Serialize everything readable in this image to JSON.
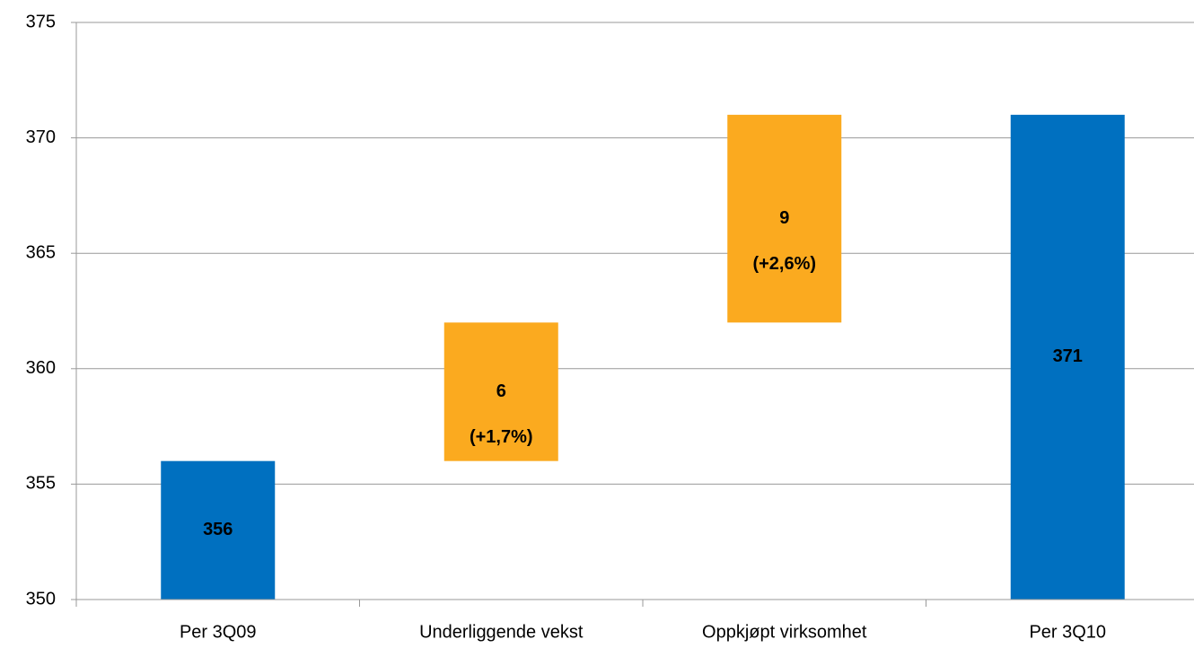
{
  "chart_data": {
    "type": "waterfall",
    "categories": [
      "Per 3Q09",
      "Underliggende vekst",
      "Oppkjøpt virksomhet",
      "Per 3Q10"
    ],
    "values": [
      356,
      6,
      9,
      371
    ],
    "measure": [
      "absolute",
      "relative",
      "relative",
      "total"
    ],
    "percent_labels": [
      null,
      "(+1,7%)",
      "(+2,6%)",
      null
    ],
    "colors": [
      "#0070c0",
      "#fbaa1f",
      "#fbaa1f",
      "#0070c0"
    ],
    "ylim": [
      350,
      375
    ],
    "yticks": [
      350,
      355,
      360,
      365,
      370,
      375
    ],
    "grid": true
  }
}
